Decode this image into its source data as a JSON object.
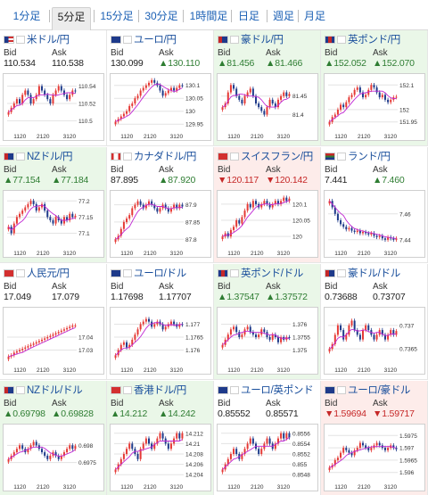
{
  "tabs": [
    {
      "label": "1分足",
      "active": false
    },
    {
      "label": "5分足",
      "active": true
    },
    {
      "label": "15分足",
      "active": false
    },
    {
      "label": "30分足",
      "active": false
    },
    {
      "label": "1時間足",
      "active": false
    },
    {
      "label": "日足",
      "active": false
    },
    {
      "label": "週足",
      "active": false
    },
    {
      "label": "月足",
      "active": false
    }
  ],
  "labels": {
    "bid": "Bid",
    "ask": "Ask"
  },
  "colors": {
    "up_bg": "#eaf7e8",
    "down_bg": "#fdecea",
    "up_text": "#2e7d32",
    "down_text": "#c62828",
    "candle_up": "#e53935",
    "candle_down": "#1e3a8a",
    "ma": "#c026d3",
    "link": "#1a4f9c"
  },
  "pairs": [
    {
      "name": "米ドル/円",
      "flag": "us",
      "bid": "110.534",
      "ask": "110.538",
      "dir": "plain",
      "chart_data": {
        "type": "candlestick",
        "x_ticks": [
          "1120",
          "2120",
          "3120"
        ],
        "y_ticks": [
          "110.54",
          "110.52",
          "110.5"
        ],
        "ylim": [
          110.49,
          110.55
        ],
        "closes": [
          110.51,
          110.515,
          110.52,
          110.525,
          110.52,
          110.53,
          110.535,
          110.53,
          110.52,
          110.525,
          110.53,
          110.54,
          110.535,
          110.53,
          110.525,
          110.52,
          110.53,
          110.535,
          110.54,
          110.535,
          110.53,
          110.525,
          110.53,
          110.535,
          110.534
        ]
      }
    },
    {
      "name": "ユーロ/円",
      "flag": "eu",
      "bid": "130.099",
      "ask": "▲130.110",
      "dir": "plain",
      "chart_data": {
        "type": "candlestick",
        "x_ticks": [
          "1120",
          "2120",
          "3120"
        ],
        "y_ticks": [
          "130.1",
          "130.05",
          "130",
          "129.95"
        ],
        "ylim": [
          129.93,
          130.13
        ],
        "closes": [
          129.96,
          129.97,
          129.98,
          129.99,
          130.0,
          130.02,
          130.03,
          130.05,
          130.06,
          130.08,
          130.09,
          130.1,
          130.11,
          130.12,
          130.11,
          130.1,
          130.08,
          130.06,
          130.07,
          130.08,
          130.09,
          130.08,
          130.09,
          130.1,
          130.099
        ]
      }
    },
    {
      "name": "豪ドル/円",
      "flag": "au",
      "bid": "▲81.456",
      "ask": "▲81.466",
      "dir": "up",
      "chart_data": {
        "type": "candlestick",
        "x_ticks": [
          "1120",
          "2120",
          "3120"
        ],
        "y_ticks": [
          "81.45",
          "81.4"
        ],
        "ylim": [
          81.36,
          81.5
        ],
        "closes": [
          81.42,
          81.43,
          81.46,
          81.48,
          81.47,
          81.45,
          81.44,
          81.43,
          81.45,
          81.46,
          81.47,
          81.45,
          81.43,
          81.42,
          81.41,
          81.4,
          81.42,
          81.44,
          81.43,
          81.42,
          81.44,
          81.45,
          81.46,
          81.45,
          81.456
        ]
      }
    },
    {
      "name": "英ポンド/円",
      "flag": "gb",
      "bid": "▲152.052",
      "ask": "▲152.070",
      "dir": "up",
      "chart_data": {
        "type": "candlestick",
        "x_ticks": [
          "1120",
          "2120",
          "3120"
        ],
        "y_ticks": [
          "152.1",
          "152",
          "151.95"
        ],
        "ylim": [
          151.92,
          152.13
        ],
        "closes": [
          151.95,
          151.97,
          151.98,
          152.0,
          152.02,
          152.01,
          152.03,
          152.05,
          152.06,
          152.08,
          152.09,
          152.07,
          152.05,
          152.06,
          152.08,
          152.1,
          152.09,
          152.07,
          152.05,
          152.06,
          152.04,
          152.03,
          152.04,
          152.05,
          152.052
        ]
      }
    },
    {
      "name": "NZドル/円",
      "flag": "nz",
      "bid": "▲77.154",
      "ask": "▲77.184",
      "dir": "up",
      "chart_data": {
        "type": "candlestick",
        "x_ticks": [
          "1120",
          "2120",
          "3120"
        ],
        "y_ticks": [
          "77.2",
          "77.15",
          "77.1"
        ],
        "ylim": [
          77.06,
          77.22
        ],
        "closes": [
          77.12,
          77.1,
          77.13,
          77.15,
          77.16,
          77.17,
          77.18,
          77.19,
          77.2,
          77.19,
          77.17,
          77.18,
          77.19,
          77.17,
          77.15,
          77.14,
          77.13,
          77.15,
          77.14,
          77.13,
          77.15,
          77.14,
          77.16,
          77.15,
          77.154
        ]
      }
    },
    {
      "name": "カナダドル/円",
      "flag": "ca",
      "bid": "87.895",
      "ask": "▲87.920",
      "dir": "plain",
      "chart_data": {
        "type": "candlestick",
        "x_ticks": [
          "1120",
          "2120",
          "3120"
        ],
        "y_ticks": [
          "87.9",
          "87.85",
          "87.8"
        ],
        "ylim": [
          87.78,
          87.93
        ],
        "closes": [
          87.8,
          87.81,
          87.83,
          87.85,
          87.86,
          87.87,
          87.89,
          87.9,
          87.91,
          87.9,
          87.89,
          87.9,
          87.91,
          87.9,
          87.89,
          87.88,
          87.89,
          87.9,
          87.89,
          87.88,
          87.89,
          87.9,
          87.89,
          87.9,
          87.895
        ]
      }
    },
    {
      "name": "スイスフラン/円",
      "flag": "ch",
      "bid": "▼120.117",
      "ask": "▼120.142",
      "dir": "down",
      "chart_data": {
        "type": "candlestick",
        "x_ticks": [
          "1120",
          "2120",
          "3120"
        ],
        "y_ticks": [
          "120.1",
          "120.05",
          "120"
        ],
        "ylim": [
          119.97,
          120.13
        ],
        "closes": [
          120.0,
          120.01,
          120.0,
          120.02,
          120.03,
          120.05,
          120.04,
          120.06,
          120.08,
          120.1,
          120.09,
          120.11,
          120.1,
          120.09,
          120.1,
          120.11,
          120.1,
          120.09,
          120.1,
          120.11,
          120.1,
          120.11,
          120.12,
          120.11,
          120.117
        ]
      }
    },
    {
      "name": "ランド/円",
      "flag": "za",
      "bid": "7.441",
      "ask": "▲7.460",
      "dir": "plain",
      "chart_data": {
        "type": "candlestick",
        "x_ticks": [
          "1120",
          "2120",
          "3120"
        ],
        "y_ticks": [
          "7.46",
          "7.44"
        ],
        "ylim": [
          7.435,
          7.475
        ],
        "closes": [
          7.47,
          7.465,
          7.46,
          7.455,
          7.452,
          7.45,
          7.448,
          7.449,
          7.447,
          7.446,
          7.447,
          7.445,
          7.446,
          7.445,
          7.444,
          7.445,
          7.443,
          7.442,
          7.443,
          7.441,
          7.44,
          7.442,
          7.441,
          7.44,
          7.441
        ]
      }
    },
    {
      "name": "人民元/円",
      "flag": "cn",
      "bid": "17.049",
      "ask": "17.079",
      "dir": "plain",
      "chart_data": {
        "type": "candlestick",
        "x_ticks": [
          "1120",
          "2120",
          "3120"
        ],
        "y_ticks": [
          "17.04",
          "17.03"
        ],
        "ylim": [
          17.02,
          17.06
        ],
        "closes": [
          17.025,
          17.026,
          17.028,
          17.029,
          17.03,
          17.031,
          17.032,
          17.033,
          17.034,
          17.035,
          17.036,
          17.037,
          17.038,
          17.039,
          17.04,
          17.041,
          17.042,
          17.043,
          17.044,
          17.045,
          17.046,
          17.047,
          17.048,
          17.049,
          17.049
        ]
      }
    },
    {
      "name": "ユーロ/ドル",
      "flag": "eu",
      "bid": "1.17698",
      "ask": "1.17707",
      "dir": "plain",
      "chart_data": {
        "type": "candlestick",
        "x_ticks": [
          "1120",
          "2120",
          "3120"
        ],
        "y_ticks": [
          "1.177",
          "1.1765",
          "1.176"
        ],
        "ylim": [
          1.1755,
          1.1775
        ],
        "closes": [
          1.1758,
          1.176,
          1.1762,
          1.1763,
          1.1761,
          1.1762,
          1.1764,
          1.1766,
          1.1768,
          1.177,
          1.1771,
          1.1772,
          1.1771,
          1.1769,
          1.177,
          1.1771,
          1.177,
          1.1768,
          1.1769,
          1.177,
          1.1771,
          1.177,
          1.1769,
          1.177,
          1.17698
        ]
      }
    },
    {
      "name": "英ポンド/ドル",
      "flag": "gb",
      "bid": "▲1.37547",
      "ask": "▲1.37572",
      "dir": "up",
      "chart_data": {
        "type": "candlestick",
        "x_ticks": [
          "1120",
          "2120",
          "3120"
        ],
        "y_ticks": [
          "1.376",
          "1.3755",
          "1.375"
        ],
        "ylim": [
          1.3745,
          1.3765
        ],
        "closes": [
          1.3752,
          1.3754,
          1.3756,
          1.3758,
          1.3759,
          1.3757,
          1.3755,
          1.3756,
          1.3758,
          1.3759,
          1.3757,
          1.3756,
          1.3755,
          1.3756,
          1.3758,
          1.3757,
          1.3755,
          1.3754,
          1.3756,
          1.3755,
          1.3753,
          1.3755,
          1.3754,
          1.3755,
          1.37547
        ]
      }
    },
    {
      "name": "豪ドル/ドル",
      "flag": "au",
      "bid": "0.73688",
      "ask": "0.73707",
      "dir": "plain",
      "chart_data": {
        "type": "candlestick",
        "x_ticks": [
          "1120",
          "2120",
          "3120"
        ],
        "y_ticks": [
          "0.737",
          "0.7365"
        ],
        "ylim": [
          0.7362,
          0.7373
        ],
        "closes": [
          0.7365,
          0.7366,
          0.7368,
          0.737,
          0.7369,
          0.7367,
          0.7368,
          0.737,
          0.7371,
          0.7369,
          0.7368,
          0.7367,
          0.7369,
          0.737,
          0.7369,
          0.7368,
          0.7367,
          0.7368,
          0.7369,
          0.7368,
          0.7367,
          0.7368,
          0.7369,
          0.7368,
          0.73688
        ]
      }
    },
    {
      "name": "NZドル/ドル",
      "flag": "nz",
      "bid": "▲0.69798",
      "ask": "▲0.69828",
      "dir": "up",
      "chart_data": {
        "type": "candlestick",
        "x_ticks": [
          "1120",
          "2120",
          "3120"
        ],
        "y_ticks": [
          "0.698",
          "0.6975"
        ],
        "ylim": [
          0.697,
          0.6985
        ],
        "closes": [
          0.6976,
          0.6977,
          0.6978,
          0.6979,
          0.698,
          0.6979,
          0.6978,
          0.6979,
          0.698,
          0.6981,
          0.698,
          0.6979,
          0.6978,
          0.6977,
          0.6976,
          0.6977,
          0.6978,
          0.6977,
          0.6976,
          0.6977,
          0.6978,
          0.6979,
          0.698,
          0.6979,
          0.69798
        ]
      }
    },
    {
      "name": "香港ドル/円",
      "flag": "hk",
      "bid": "▲14.212",
      "ask": "▲14.242",
      "dir": "up",
      "chart_data": {
        "type": "candlestick",
        "x_ticks": [
          "1120",
          "2120",
          "3120"
        ],
        "y_ticks": [
          "14.212",
          "14.21",
          "14.208",
          "14.206",
          "14.204"
        ],
        "ylim": [
          14.203,
          14.213
        ],
        "closes": [
          14.205,
          14.206,
          14.207,
          14.208,
          14.209,
          14.21,
          14.209,
          14.208,
          14.207,
          14.209,
          14.21,
          14.211,
          14.21,
          14.209,
          14.21,
          14.211,
          14.212,
          14.211,
          14.21,
          14.209,
          14.21,
          14.211,
          14.212,
          14.211,
          14.212
        ]
      }
    },
    {
      "name": "ユーロ/英ポンド",
      "flag": "eu",
      "bid": "0.85552",
      "ask": "0.85571",
      "dir": "plain",
      "chart_data": {
        "type": "candlestick",
        "x_ticks": [
          "1120",
          "2120",
          "3120"
        ],
        "y_ticks": [
          "0.8556",
          "0.8554",
          "0.8552",
          "0.855",
          "0.8548"
        ],
        "ylim": [
          0.8547,
          0.8557
        ],
        "closes": [
          0.8549,
          0.855,
          0.8551,
          0.8552,
          0.8553,
          0.8552,
          0.8551,
          0.8552,
          0.8553,
          0.8554,
          0.8555,
          0.8554,
          0.8553,
          0.8552,
          0.8553,
          0.8554,
          0.8555,
          0.8554,
          0.8553,
          0.8554,
          0.8555,
          0.8556,
          0.8555,
          0.8556,
          0.85552
        ]
      }
    },
    {
      "name": "ユーロ/豪ドル",
      "flag": "eu",
      "bid": "▼1.59694",
      "ask": "▼1.59717",
      "dir": "down",
      "chart_data": {
        "type": "candlestick",
        "x_ticks": [
          "1120",
          "2120",
          "3120"
        ],
        "y_ticks": [
          "1.5975",
          "1.597",
          "1.5965",
          "1.596"
        ],
        "ylim": [
          1.5957,
          1.5978
        ],
        "closes": [
          1.5962,
          1.5963,
          1.5965,
          1.5966,
          1.5968,
          1.597,
          1.5969,
          1.5968,
          1.5967,
          1.5969,
          1.597,
          1.5972,
          1.5971,
          1.597,
          1.5969,
          1.597,
          1.5971,
          1.5972,
          1.5971,
          1.597,
          1.5969,
          1.597,
          1.5971,
          1.597,
          1.59694
        ]
      }
    }
  ]
}
